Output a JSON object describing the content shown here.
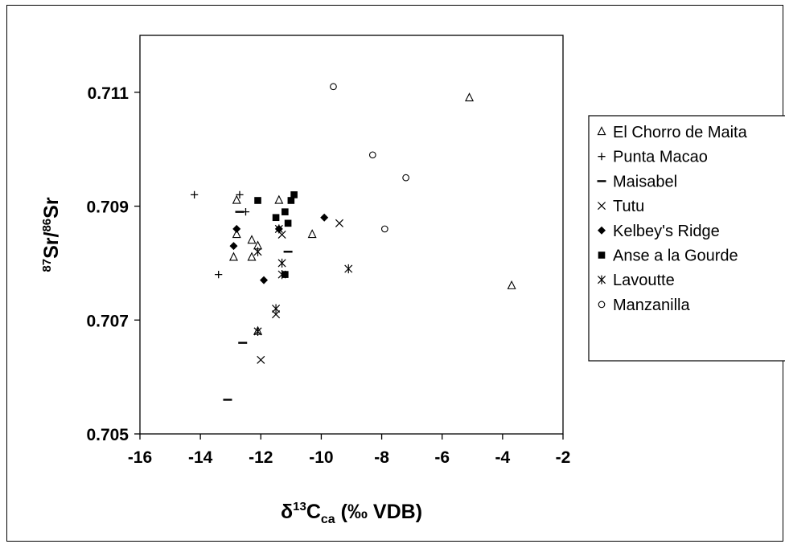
{
  "chart_data": {
    "type": "scatter",
    "xlabel": {
      "main": "δ",
      "sup": "13",
      "base": "C",
      "sub": "ca",
      "rest": " (‰ VDB)"
    },
    "ylabel": {
      "sup1": "87",
      "part1": "Sr/",
      "sup2": "86",
      "part2": "Sr"
    },
    "xlim": [
      -16,
      -2
    ],
    "ylim": [
      0.705,
      0.712
    ],
    "x_ticks": [
      -16,
      -14,
      -12,
      -10,
      -8,
      -6,
      -4,
      -2
    ],
    "x_tick_labels": [
      "-16",
      "-14",
      "-12",
      "-10",
      "-8",
      "-6",
      "-4",
      "-2"
    ],
    "y_ticks": [
      0.705,
      0.707,
      0.709,
      0.711
    ],
    "y_tick_labels": [
      "0.705",
      "0.707",
      "0.709",
      "0.711"
    ],
    "grid": false,
    "legend_position": "right",
    "series": [
      {
        "name": "El Chorro de Maita",
        "marker": "triangle",
        "points": [
          [
            -12.8,
            0.7091
          ],
          [
            -12.8,
            0.7085
          ],
          [
            -12.9,
            0.7081
          ],
          [
            -12.3,
            0.7084
          ],
          [
            -12.3,
            0.7081
          ],
          [
            -12.1,
            0.7083
          ],
          [
            -11.4,
            0.7091
          ],
          [
            -10.3,
            0.7085
          ],
          [
            -12.1,
            0.7068
          ],
          [
            -5.1,
            0.7109
          ],
          [
            -3.7,
            0.7076
          ]
        ]
      },
      {
        "name": "Punta Macao",
        "marker": "plus",
        "points": [
          [
            -14.2,
            0.7092
          ],
          [
            -13.4,
            0.7078
          ],
          [
            -12.5,
            0.7089
          ],
          [
            -12.7,
            0.7092
          ]
        ]
      },
      {
        "name": "Maisabel",
        "marker": "dash",
        "points": [
          [
            -13.1,
            0.7056
          ],
          [
            -12.6,
            0.7066
          ],
          [
            -12.7,
            0.7089
          ],
          [
            -11.1,
            0.7082
          ]
        ]
      },
      {
        "name": "Tutu",
        "marker": "x",
        "points": [
          [
            -12.0,
            0.7063
          ],
          [
            -11.5,
            0.7071
          ],
          [
            -11.3,
            0.7085
          ],
          [
            -9.4,
            0.7087
          ]
        ]
      },
      {
        "name": "Kelbey's Ridge",
        "marker": "diamond",
        "points": [
          [
            -12.8,
            0.7086
          ],
          [
            -12.9,
            0.7083
          ],
          [
            -11.9,
            0.7077
          ],
          [
            -11.4,
            0.7086
          ],
          [
            -9.9,
            0.7088
          ]
        ]
      },
      {
        "name": "Anse a la Gourde",
        "marker": "square",
        "points": [
          [
            -12.1,
            0.7091
          ],
          [
            -11.5,
            0.7088
          ],
          [
            -11.2,
            0.7089
          ],
          [
            -11.1,
            0.7087
          ],
          [
            -11.0,
            0.7091
          ],
          [
            -10.9,
            0.7092
          ],
          [
            -11.2,
            0.7078
          ]
        ]
      },
      {
        "name": "Lavoutte",
        "marker": "asterisk",
        "points": [
          [
            -12.1,
            0.7082
          ],
          [
            -11.3,
            0.708
          ],
          [
            -11.5,
            0.7072
          ],
          [
            -12.1,
            0.7068
          ],
          [
            -11.3,
            0.7078
          ],
          [
            -11.4,
            0.7086
          ],
          [
            -9.1,
            0.7079
          ]
        ]
      },
      {
        "name": "Manzanilla",
        "marker": "circle",
        "points": [
          [
            -9.6,
            0.7111
          ],
          [
            -8.3,
            0.7099
          ],
          [
            -7.2,
            0.7095
          ],
          [
            -7.9,
            0.7086
          ]
        ]
      }
    ]
  }
}
